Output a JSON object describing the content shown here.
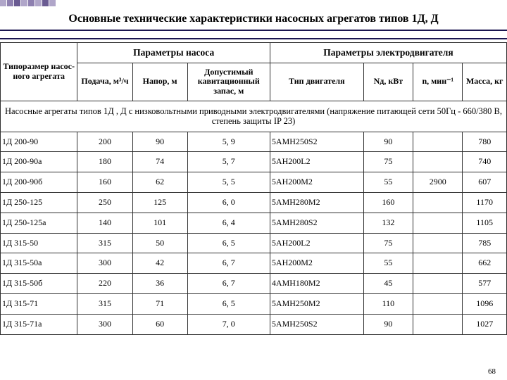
{
  "title": "Основные технические характеристики насосных агрегатов типов 1Д, Д",
  "header": {
    "group_pump": "Параметры насоса",
    "group_motor": "Параметры электродвигателя",
    "col_model": "Типоразмер насос­ного агрегата",
    "col_flow": "Подача, м³/ч",
    "col_head": "Напор, м",
    "col_npsh": "Допустимый кавитацион­ный запас, м",
    "col_motor_type": "Тип двигателя",
    "col_power": "Nд, кВт",
    "col_speed": "n, мин⁻¹",
    "col_mass": "Масса, кг"
  },
  "section1": "Насосные агрегаты типов 1Д , Д с низковольтными приводными электродвигателями (напряжение питающей сети 50Гц - 660/380 В, степень защиты IP 23)",
  "cols": {
    "model_w": "13%",
    "flow_w": "10%",
    "head_w": "10%",
    "npsh_w": "15%",
    "motor_w": "17%",
    "power_w": "9%",
    "speed_w": "9%",
    "mass_w": "9%"
  },
  "rows": [
    {
      "m": "1Д 200-90",
      "f": "200",
      "h": "90",
      "n": "5, 9",
      "t": "5АМН250S2",
      "p": "90",
      "s": "",
      "w": "780"
    },
    {
      "m": "1Д 200-90а",
      "f": "180",
      "h": "74",
      "n": "5, 7",
      "t": "5АН200L2",
      "p": "75",
      "s": "",
      "w": "740"
    },
    {
      "m": "1Д 200-90б",
      "f": "160",
      "h": "62",
      "n": "5, 5",
      "t": "5АН200М2",
      "p": "55",
      "s": "2900",
      "w": "607"
    },
    {
      "m": "1Д 250-125",
      "f": "250",
      "h": "125",
      "n": "6, 0",
      "t": "5АМН280М2",
      "p": "160",
      "s": "",
      "w": "1170"
    },
    {
      "m": "1Д 250-125а",
      "f": "140",
      "h": "101",
      "n": "6, 4",
      "t": "5АМН280S2",
      "p": "132",
      "s": "",
      "w": "1105"
    },
    {
      "m": "1Д 315-50",
      "f": "315",
      "h": "50",
      "n": "6, 5",
      "t": "5АН200L2",
      "p": "75",
      "s": "",
      "w": "785"
    },
    {
      "m": "1Д 315-50а",
      "f": "300",
      "h": "42",
      "n": "6, 7",
      "t": "5АН200М2",
      "p": "55",
      "s": "",
      "w": "662"
    },
    {
      "m": "1Д 315-50б",
      "f": "220",
      "h": "36",
      "n": "6, 7",
      "t": "4АМН180М2",
      "p": "45",
      "s": "",
      "w": "577"
    },
    {
      "m": "1Д 315-71",
      "f": "315",
      "h": "71",
      "n": "6, 5",
      "t": "5АМН250М2",
      "p": "110",
      "s": "",
      "w": "1096"
    },
    {
      "m": "1Д 315-71а",
      "f": "300",
      "h": "60",
      "n": "7, 0",
      "t": "5АМН250S2",
      "p": "90",
      "s": "",
      "w": "1027"
    }
  ],
  "page_num": "68"
}
